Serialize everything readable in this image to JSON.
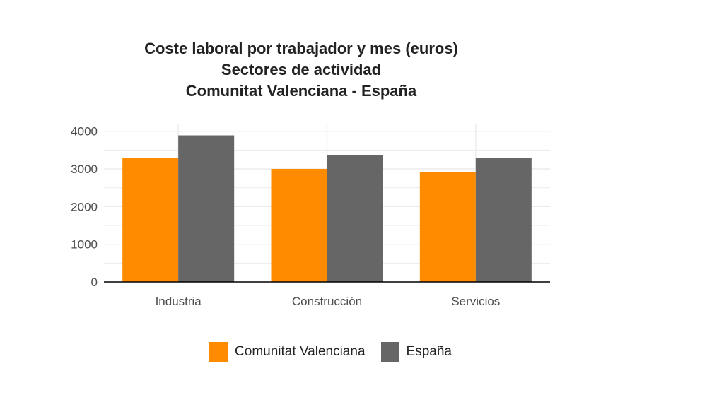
{
  "colors": {
    "comunitat_valenciana": "#FF8C00",
    "espana": "#666666",
    "grid": "#ebebeb",
    "axis": "#000000",
    "text": "#222222"
  },
  "chart_data": {
    "type": "bar",
    "title": [
      "Coste laboral por trabajador y mes (euros)",
      "Sectores de actividad",
      "Comunitat Valenciana - España"
    ],
    "xlabel": "",
    "ylabel": "",
    "categories": [
      "Industria",
      "Construcción",
      "Servicios"
    ],
    "series": [
      {
        "name": "Comunitat Valenciana",
        "values": [
          3300,
          3000,
          2920
        ]
      },
      {
        "name": "España",
        "values": [
          3890,
          3370,
          3300
        ]
      }
    ],
    "ylim": [
      0,
      4200
    ],
    "yticks": [
      "0",
      "1000",
      "2000",
      "3000",
      "4000"
    ],
    "grid": true,
    "legend": "bottom"
  }
}
